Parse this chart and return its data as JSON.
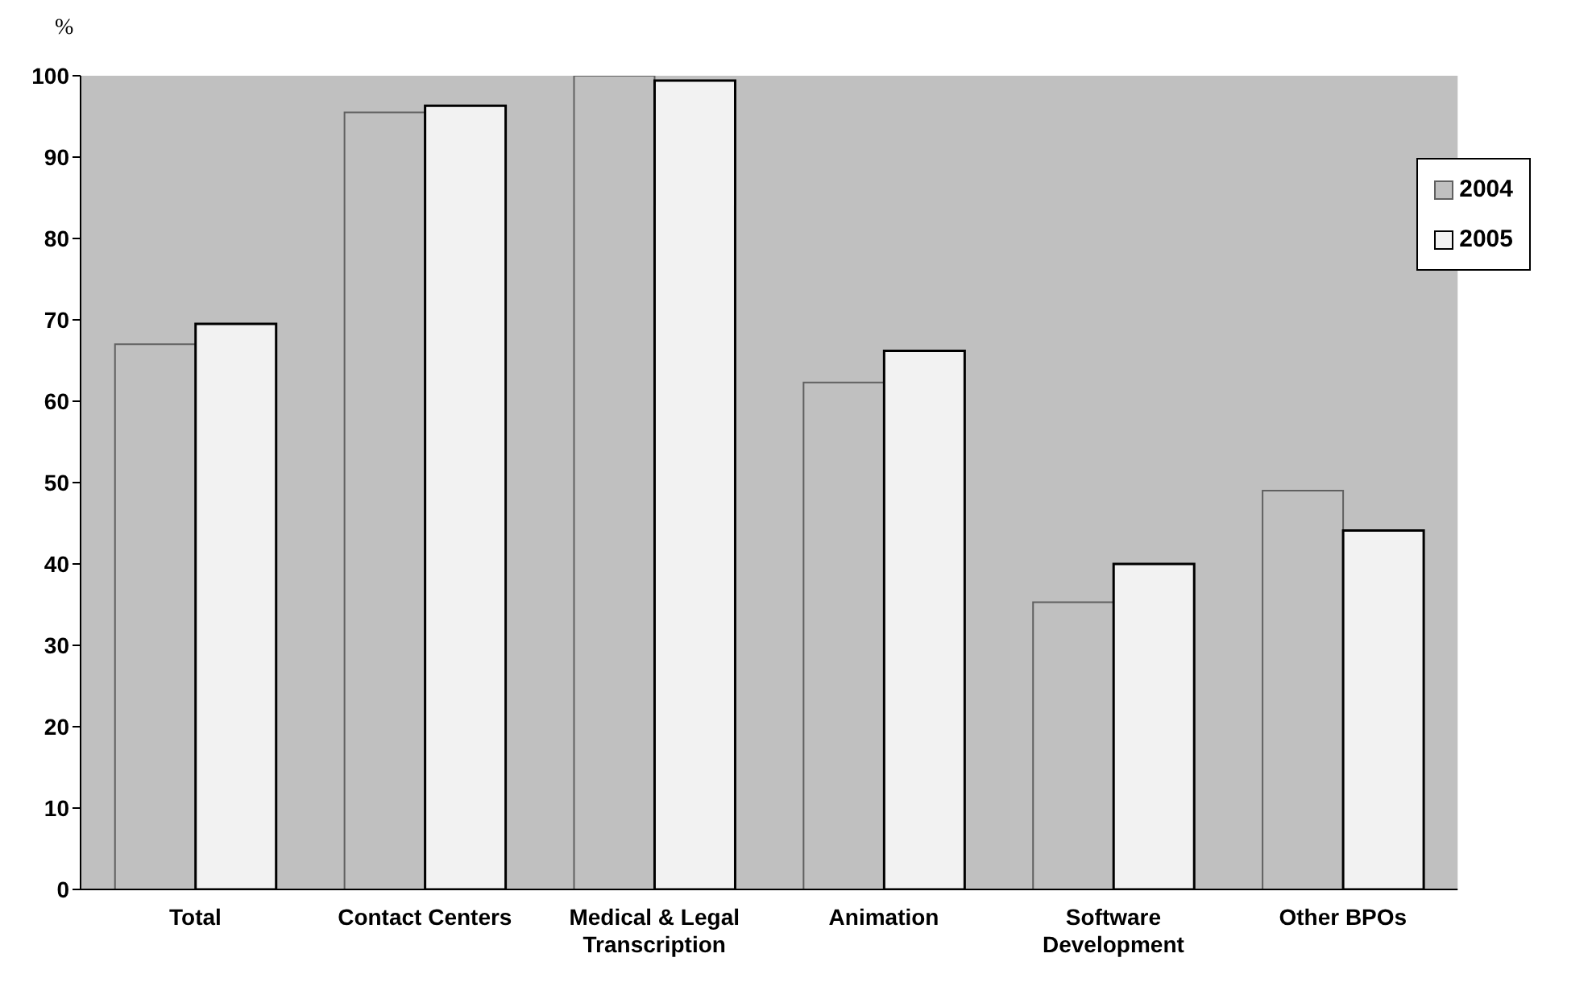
{
  "chart_data": {
    "type": "bar",
    "ylabel": "%",
    "categories": [
      "Total",
      "Contact Centers",
      "Medical & Legal Transcription",
      "Animation",
      "Software Development",
      "Other BPOs"
    ],
    "series": [
      {
        "name": "2004",
        "color": "#c0c0c0",
        "values": [
          67,
          95.5,
          100,
          62.3,
          35.3,
          49
        ]
      },
      {
        "name": "2005",
        "color": "#f2f2f2",
        "values": [
          69.5,
          96.3,
          99.4,
          66.2,
          40,
          44.1
        ]
      }
    ],
    "ylim": [
      0,
      100
    ],
    "yticks": [
      0,
      10,
      20,
      30,
      40,
      50,
      60,
      70,
      80,
      90,
      100
    ],
    "grid": false,
    "legend": "top right"
  }
}
